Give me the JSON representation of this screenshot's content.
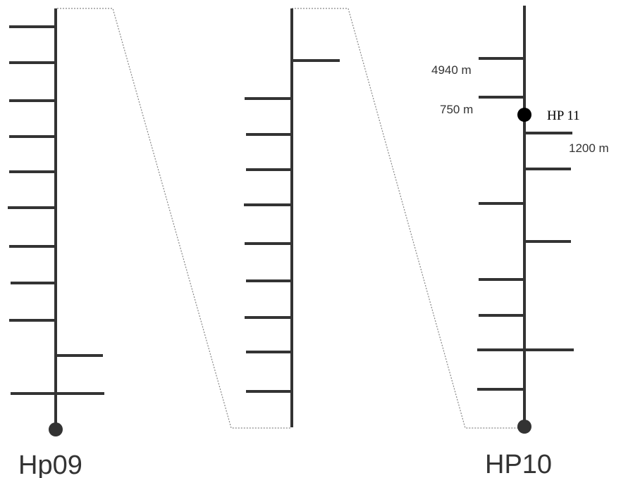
{
  "diagram": {
    "line_color": "#333333",
    "node_color": "#333333",
    "label_color": "#333333",
    "point_color": "#000000",
    "labels": {
      "start": "Hp09",
      "end": "HP10",
      "point": "HP 11",
      "dist_1": "4940 m",
      "dist_2": "750 m",
      "dist_3": "1200 m"
    }
  }
}
